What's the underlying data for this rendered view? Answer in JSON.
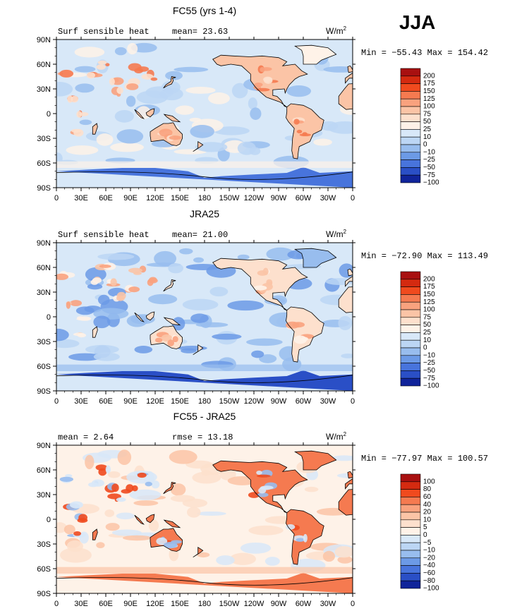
{
  "season": "JJA",
  "units": "W/m",
  "units_sup": "2",
  "colors": {
    "ocean_base": "#c5dcf7",
    "land_base": "#fcd7bf"
  },
  "lon_ticks": [
    "0",
    "30E",
    "60E",
    "90E",
    "120E",
    "150E",
    "180",
    "150W",
    "120W",
    "90W",
    "60W",
    "30W",
    "0"
  ],
  "lat_ticks": [
    "90N",
    "60N",
    "30N",
    "0",
    "30S",
    "60S",
    "90S"
  ],
  "chart_data": [
    {
      "type": "heatmap",
      "title": "FC55 (yrs 1-4)",
      "left_label": "Surf sensible heat",
      "center_label": "mean=   23.63",
      "stats": "Min = −55.43 Max = 154.42",
      "levels": [
        "200",
        "175",
        "150",
        "125",
        "100",
        "75",
        "50",
        "25",
        "10",
        "0",
        "−10",
        "−25",
        "−50",
        "−75",
        "−100"
      ],
      "level_colors": [
        "#a81010",
        "#d42a10",
        "#f04a1e",
        "#f57a50",
        "#f9a27e",
        "#fbc4a6",
        "#fde0cd",
        "#fef2e8",
        "#d8e8f8",
        "#bcd6f4",
        "#98bdee",
        "#6c9ae6",
        "#4874dc",
        "#2a4fc6",
        "#10249a"
      ]
    },
    {
      "type": "heatmap",
      "title": "JRA25",
      "left_label": "Surf sensible heat",
      "center_label": "mean=   21.00",
      "stats": "Min = −72.90 Max = 113.49",
      "levels": [
        "200",
        "175",
        "150",
        "125",
        "100",
        "75",
        "50",
        "25",
        "10",
        "0",
        "−10",
        "−25",
        "−50",
        "−75",
        "−100"
      ],
      "level_colors": [
        "#a81010",
        "#d42a10",
        "#f04a1e",
        "#f57a50",
        "#f9a27e",
        "#fbc4a6",
        "#fde0cd",
        "#fef2e8",
        "#d8e8f8",
        "#bcd6f4",
        "#98bdee",
        "#6c9ae6",
        "#4874dc",
        "#2a4fc6",
        "#10249a"
      ]
    },
    {
      "type": "heatmap",
      "title": "FC55 - JRA25",
      "left_label": "mean =    2.64",
      "center_label": "rmse =   13.18",
      "stats": "Min = −77.97 Max = 100.57",
      "levels": [
        "100",
        "80",
        "60",
        "40",
        "20",
        "10",
        "5",
        "0",
        "−5",
        "−10",
        "−20",
        "−40",
        "−60",
        "−80",
        "−100"
      ],
      "level_colors": [
        "#a81010",
        "#d42a10",
        "#f04a1e",
        "#f57a50",
        "#f9a27e",
        "#fbc4a6",
        "#fde0cd",
        "#fef2e8",
        "#d8e8f8",
        "#bcd6f4",
        "#98bdee",
        "#6c9ae6",
        "#4874dc",
        "#2a4fc6",
        "#10249a"
      ]
    }
  ]
}
